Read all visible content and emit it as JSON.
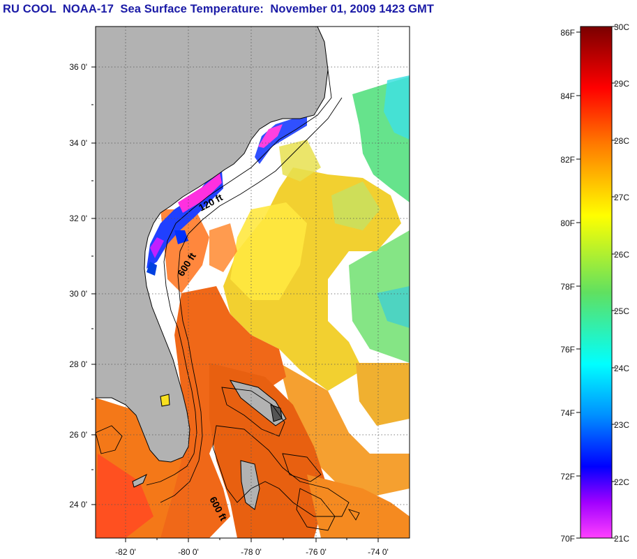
{
  "title": "RU COOL  NOAA-17  Sea Surface Temperature:  November 01, 2009 1423 GMT",
  "map": {
    "lat_labels": [
      "36 0'",
      "34 0'",
      "32 0'",
      "30 0'",
      "28 0'",
      "26 0'",
      "24 0'"
    ],
    "lon_labels": [
      "-82 0'",
      "-80 0'",
      "-78 0'",
      "-76 0'",
      "-74 0'"
    ],
    "contour_labels": [
      "120 ft",
      "600 ft",
      "600 ft"
    ],
    "colors": {
      "land": "#b2b2b2",
      "cloud_mask": "#ffffff",
      "gridline": "#555555"
    }
  },
  "colorbar": {
    "fahrenheit_labels": [
      "86F",
      "84F",
      "82F",
      "80F",
      "78F",
      "76F",
      "74F",
      "72F",
      "70F"
    ],
    "celsius_labels": [
      "30C",
      "29C",
      "28C",
      "27C",
      "26C",
      "25C",
      "24C",
      "23C",
      "22C",
      "21C"
    ],
    "range_celsius": [
      21,
      30
    ],
    "gradient_stops": [
      "#7a0000",
      "#ff0000",
      "#ff7a00",
      "#ffff00",
      "#00ff80",
      "#00ffff",
      "#0060ff",
      "#0000ff",
      "#ff00ff"
    ]
  }
}
